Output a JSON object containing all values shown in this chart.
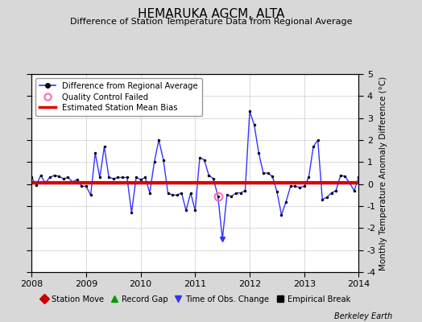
{
  "title": "HEMARUKA AGCM, ALTA",
  "subtitle": "Difference of Station Temperature Data from Regional Average",
  "ylabel": "Monthly Temperature Anomaly Difference (°C)",
  "bias": 0.05,
  "ylim": [
    -4,
    5
  ],
  "yticks": [
    -4,
    -3,
    -2,
    -1,
    0,
    1,
    2,
    3,
    4,
    5
  ],
  "xlim": [
    2008.0,
    2014.0
  ],
  "xticks": [
    2008,
    2009,
    2010,
    2011,
    2012,
    2013,
    2014
  ],
  "bg_color": "#d8d8d8",
  "plot_bg_color": "#ffffff",
  "line_color": "#3333ff",
  "bias_color": "#dd0000",
  "marker_color": "#000000",
  "qc_marker_color": "#ff69b4",
  "time_series": [
    [
      2008.0,
      0.3
    ],
    [
      2008.083,
      -0.05
    ],
    [
      2008.167,
      0.4
    ],
    [
      2008.25,
      0.05
    ],
    [
      2008.333,
      0.3
    ],
    [
      2008.417,
      0.4
    ],
    [
      2008.5,
      0.35
    ],
    [
      2008.583,
      0.25
    ],
    [
      2008.667,
      0.3
    ],
    [
      2008.75,
      0.1
    ],
    [
      2008.833,
      0.2
    ],
    [
      2008.917,
      -0.1
    ],
    [
      2009.0,
      -0.1
    ],
    [
      2009.083,
      -0.5
    ],
    [
      2009.167,
      1.4
    ],
    [
      2009.25,
      0.3
    ],
    [
      2009.333,
      1.7
    ],
    [
      2009.417,
      0.3
    ],
    [
      2009.5,
      0.25
    ],
    [
      2009.583,
      0.3
    ],
    [
      2009.667,
      0.3
    ],
    [
      2009.75,
      0.3
    ],
    [
      2009.833,
      -1.3
    ],
    [
      2009.917,
      0.3
    ],
    [
      2010.0,
      0.2
    ],
    [
      2010.083,
      0.3
    ],
    [
      2010.167,
      -0.4
    ],
    [
      2010.25,
      1.0
    ],
    [
      2010.333,
      2.0
    ],
    [
      2010.417,
      1.1
    ],
    [
      2010.5,
      -0.4
    ],
    [
      2010.583,
      -0.5
    ],
    [
      2010.667,
      -0.5
    ],
    [
      2010.75,
      -0.4
    ],
    [
      2010.833,
      -1.2
    ],
    [
      2010.917,
      -0.4
    ],
    [
      2011.0,
      -1.2
    ],
    [
      2011.083,
      1.2
    ],
    [
      2011.167,
      1.1
    ],
    [
      2011.25,
      0.4
    ],
    [
      2011.333,
      0.25
    ],
    [
      2011.417,
      -0.55
    ],
    [
      2011.5,
      -2.5
    ],
    [
      2011.583,
      -0.5
    ],
    [
      2011.667,
      -0.55
    ],
    [
      2011.75,
      -0.4
    ],
    [
      2011.833,
      -0.4
    ],
    [
      2011.917,
      -0.3
    ],
    [
      2012.0,
      3.3
    ],
    [
      2012.083,
      2.7
    ],
    [
      2012.167,
      1.4
    ],
    [
      2012.25,
      0.5
    ],
    [
      2012.333,
      0.5
    ],
    [
      2012.417,
      0.35
    ],
    [
      2012.5,
      -0.35
    ],
    [
      2012.583,
      -1.4
    ],
    [
      2012.667,
      -0.8
    ],
    [
      2012.75,
      -0.1
    ],
    [
      2012.833,
      -0.1
    ],
    [
      2012.917,
      -0.15
    ],
    [
      2013.0,
      -0.1
    ],
    [
      2013.083,
      0.3
    ],
    [
      2013.167,
      1.7
    ],
    [
      2013.25,
      2.0
    ],
    [
      2013.333,
      -0.7
    ],
    [
      2013.417,
      -0.6
    ],
    [
      2013.5,
      -0.4
    ],
    [
      2013.583,
      -0.3
    ],
    [
      2013.667,
      0.4
    ],
    [
      2013.75,
      0.35
    ],
    [
      2013.833,
      0.05
    ],
    [
      2013.917,
      -0.3
    ],
    [
      2014.0,
      0.3
    ]
  ],
  "qc_failed": [
    [
      2011.417,
      -0.55
    ]
  ],
  "time_of_obs": [
    [
      2011.5,
      -2.5
    ]
  ],
  "footer": "Berkeley Earth"
}
